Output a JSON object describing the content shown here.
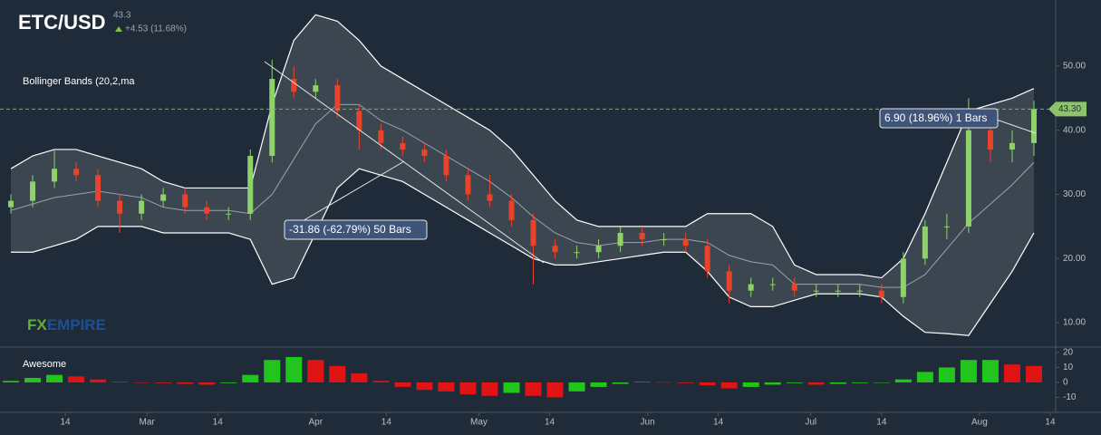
{
  "header": {
    "symbol": "ETC/USD",
    "change": "+4.53 (11.68%)"
  },
  "watermark": {
    "fx": "FX",
    "empire": "EMPIRE"
  },
  "chart_data": [
    {
      "type": "candlestick",
      "title": "Bollinger Bands (20,2,ma",
      "x": [
        2,
        6,
        10,
        14,
        18,
        22,
        26,
        30,
        34,
        38,
        42,
        46,
        50,
        54,
        58,
        62,
        66,
        70,
        74,
        78,
        82,
        86,
        90,
        94,
        98,
        102,
        106,
        110,
        114,
        118,
        122,
        126,
        130,
        134,
        138,
        142,
        146,
        150,
        154,
        158,
        162,
        166,
        170,
        174,
        178,
        182,
        186,
        190
      ],
      "open": [
        28,
        29,
        32,
        34,
        33,
        29,
        27,
        29,
        30,
        28,
        27,
        27,
        36,
        48,
        46,
        47,
        43,
        40,
        38,
        37,
        36,
        33,
        30,
        29,
        26,
        22,
        21,
        21,
        22,
        24,
        23,
        23,
        22,
        18,
        15,
        16,
        16,
        15,
        15,
        15,
        15,
        14,
        20,
        25,
        25,
        40,
        37,
        38
      ],
      "high": [
        30,
        33,
        37,
        35,
        34,
        30,
        30,
        31,
        31,
        29,
        28,
        37,
        51,
        50,
        48,
        48,
        44,
        41,
        39,
        38,
        37,
        34,
        33,
        30,
        27,
        23,
        22,
        23,
        25,
        25,
        24,
        24,
        23,
        19,
        17,
        17,
        17,
        16,
        16,
        16,
        16,
        21,
        26,
        27,
        45,
        41,
        40,
        44.6
      ],
      "low": [
        27,
        28,
        31,
        32,
        28,
        24,
        26,
        28,
        27,
        26,
        26,
        26,
        35,
        45,
        45,
        42,
        37,
        37,
        36,
        35,
        32,
        29,
        28,
        25,
        16,
        20,
        20,
        20,
        21,
        22,
        22,
        21,
        17,
        13,
        14,
        15,
        14,
        14,
        14,
        14,
        13,
        13,
        19,
        23,
        24,
        35,
        35,
        36
      ],
      "close": [
        29,
        32,
        34,
        33,
        29,
        27,
        29,
        30,
        28,
        27,
        27,
        36,
        48,
        46,
        47,
        43,
        40,
        38,
        37,
        36,
        33,
        30,
        29,
        26,
        22,
        21,
        21,
        22,
        24,
        23,
        23,
        22,
        18,
        15,
        16,
        16,
        15,
        15,
        15,
        15,
        14,
        20,
        25,
        25,
        40,
        37,
        38,
        43.3
      ],
      "bands": {
        "upper": [
          34,
          36,
          37,
          37,
          36,
          35,
          34,
          32,
          31,
          31,
          31,
          31,
          44,
          54,
          58,
          57,
          54,
          50,
          48,
          46,
          44,
          42,
          40,
          37,
          33,
          29,
          26,
          25,
          25,
          25,
          25,
          25,
          27,
          27,
          27,
          25,
          19,
          17.5,
          17.5,
          17.5,
          17,
          20,
          27,
          35,
          43,
          44,
          45,
          46.5
        ],
        "middle": [
          27.5,
          28.5,
          29.5,
          30,
          30.5,
          30,
          29.5,
          28,
          27.5,
          27.5,
          27.5,
          27,
          30,
          35.5,
          41,
          44,
          44,
          41.5,
          40,
          38,
          36,
          34,
          32,
          29.5,
          26.5,
          24,
          22.5,
          22,
          22.5,
          22.5,
          23,
          23,
          22.5,
          20.5,
          19.5,
          19,
          16,
          16,
          16,
          16,
          15.5,
          15.5,
          17.5,
          21.5,
          25.5,
          28.5,
          31.5,
          35
        ],
        "lower": [
          21,
          21,
          22,
          23,
          25,
          25,
          25,
          24,
          24,
          24,
          24,
          23,
          16,
          17,
          24,
          31,
          34,
          33,
          32,
          30,
          28,
          26,
          24,
          22,
          20,
          19,
          19,
          19.5,
          20,
          20.5,
          21,
          21,
          18,
          14,
          12.5,
          12.5,
          13.5,
          14.5,
          14.5,
          14.5,
          14,
          11,
          8.5,
          8.3,
          8,
          13,
          18,
          24
        ]
      },
      "up_color": "#8fd16a",
      "down_color": "#e8442c",
      "xlim": [
        0,
        194
      ],
      "ylim": [
        6.2,
        60.3
      ],
      "yticks": [
        {
          "value": 10,
          "label": "10.00"
        },
        {
          "value": 20,
          "label": "20.00"
        },
        {
          "value": 30,
          "label": "30.00"
        },
        {
          "value": 40,
          "label": "40.00"
        },
        {
          "value": 50,
          "label": "50.00"
        }
      ],
      "last_price": {
        "value": 43.3,
        "label": "43.30"
      },
      "annotations": [
        "-31.86 (-62.79%) 50 Bars",
        "6.90 (18.96%) 1 Bars"
      ],
      "grid": false
    },
    {
      "type": "bar",
      "title": "Awesome",
      "x": [
        2,
        6,
        10,
        14,
        18,
        22,
        26,
        30,
        34,
        38,
        42,
        46,
        50,
        54,
        58,
        62,
        66,
        70,
        74,
        78,
        82,
        86,
        90,
        94,
        98,
        102,
        106,
        110,
        114,
        118,
        122,
        126,
        130,
        134,
        138,
        142,
        146,
        150,
        154,
        158,
        162,
        166,
        170,
        174,
        178,
        182,
        186,
        190
      ],
      "values": [
        1,
        3,
        5,
        4,
        2,
        0.5,
        -0.3,
        -0.5,
        -1,
        -1.5,
        -0.5,
        5,
        15,
        17,
        15,
        11,
        6,
        1,
        -3,
        -5,
        -6,
        -8,
        -9,
        -7,
        -9,
        -10,
        -6,
        -3,
        -1,
        0.3,
        0.2,
        -0.5,
        -2,
        -4,
        -3,
        -1.5,
        -0.5,
        -1.5,
        -1,
        -0.5,
        -0.3,
        2,
        7,
        10,
        15,
        15,
        12,
        11
      ],
      "up_color": "#22c51c",
      "down_color": "#e01414",
      "xlim": [
        0,
        194
      ],
      "ylim": [
        -20,
        23.6
      ],
      "yticks": [
        20,
        10,
        0,
        -10
      ],
      "xticks": [
        {
          "value": 12,
          "label": "14"
        },
        {
          "value": 27,
          "label": "Mar"
        },
        {
          "value": 40,
          "label": "14"
        },
        {
          "value": 58,
          "label": "Apr"
        },
        {
          "value": 71,
          "label": "14"
        },
        {
          "value": 88,
          "label": "May"
        },
        {
          "value": 101,
          "label": "14"
        },
        {
          "value": 119,
          "label": "Jun"
        },
        {
          "value": 132,
          "label": "14"
        },
        {
          "value": 149,
          "label": "Jul"
        },
        {
          "value": 162,
          "label": "14"
        },
        {
          "value": 180,
          "label": "Aug"
        },
        {
          "value": 193,
          "label": "14"
        }
      ]
    }
  ]
}
